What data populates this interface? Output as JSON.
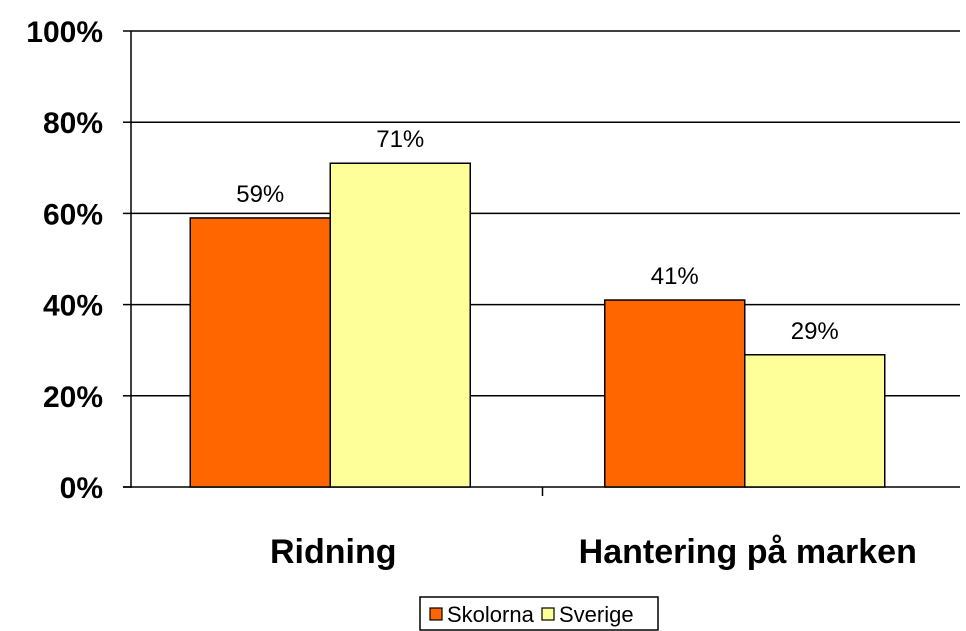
{
  "chart_data": {
    "type": "bar",
    "categories": [
      "Ridning",
      "Hantering på marken"
    ],
    "series": [
      {
        "name": "Skolorna",
        "values": [
          59,
          41
        ],
        "labels": [
          "59%",
          "41%"
        ],
        "color": "#FF6600"
      },
      {
        "name": "Sverige",
        "values": [
          71,
          29
        ],
        "labels": [
          "71%",
          "29%"
        ],
        "color": "#FFFF99"
      }
    ],
    "ylim": [
      0,
      100
    ],
    "yticks": [
      0,
      20,
      40,
      60,
      80,
      100
    ],
    "ytick_labels": [
      "0%",
      "20%",
      "40%",
      "60%",
      "80%",
      "100%"
    ],
    "grid": true,
    "legend_position": "bottom"
  }
}
